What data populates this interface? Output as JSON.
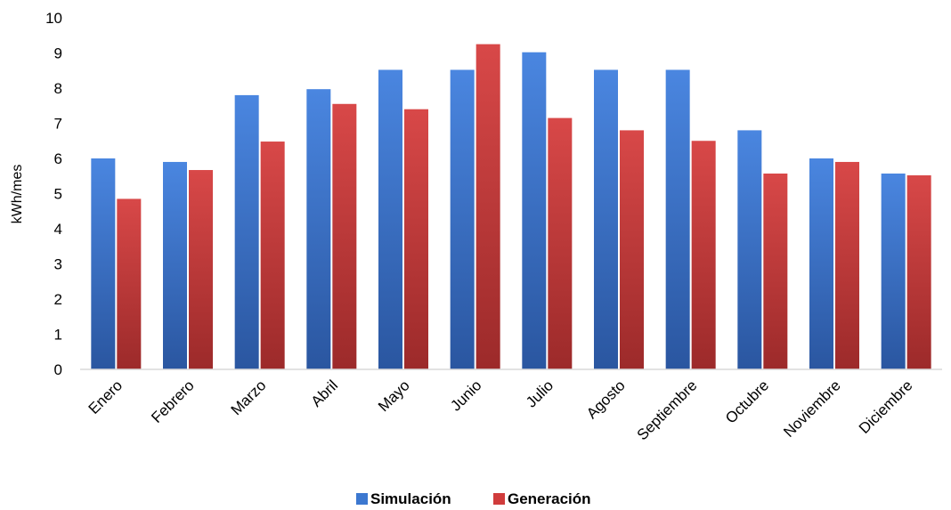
{
  "chart_data": {
    "type": "bar",
    "title": "",
    "xlabel": "",
    "ylabel": "kWh/mes",
    "ylim": [
      0,
      10
    ],
    "yticks": [
      "0",
      "1",
      "2",
      "3",
      "4",
      "5",
      "6",
      "7",
      "8",
      "9",
      "10"
    ],
    "grid": false,
    "legend_position": "bottom",
    "categories": [
      "Enero",
      "Febrero",
      "Marzo",
      "Abril",
      "Mayo",
      "Junio",
      "Julio",
      "Agosto",
      "Septiembre",
      "Octubre",
      "Noviembre",
      "Diciembre"
    ],
    "series": [
      {
        "name": "Simulación",
        "color": "#3c78d0",
        "values": [
          6.0,
          5.9,
          7.8,
          7.97,
          8.52,
          8.52,
          9.02,
          8.52,
          8.52,
          6.8,
          6.0,
          5.57
        ]
      },
      {
        "name": "Generación",
        "color": "#d03c3c",
        "values": [
          4.85,
          5.67,
          6.48,
          7.55,
          7.4,
          9.25,
          7.15,
          6.8,
          6.5,
          5.57,
          5.9,
          5.52
        ]
      }
    ]
  }
}
